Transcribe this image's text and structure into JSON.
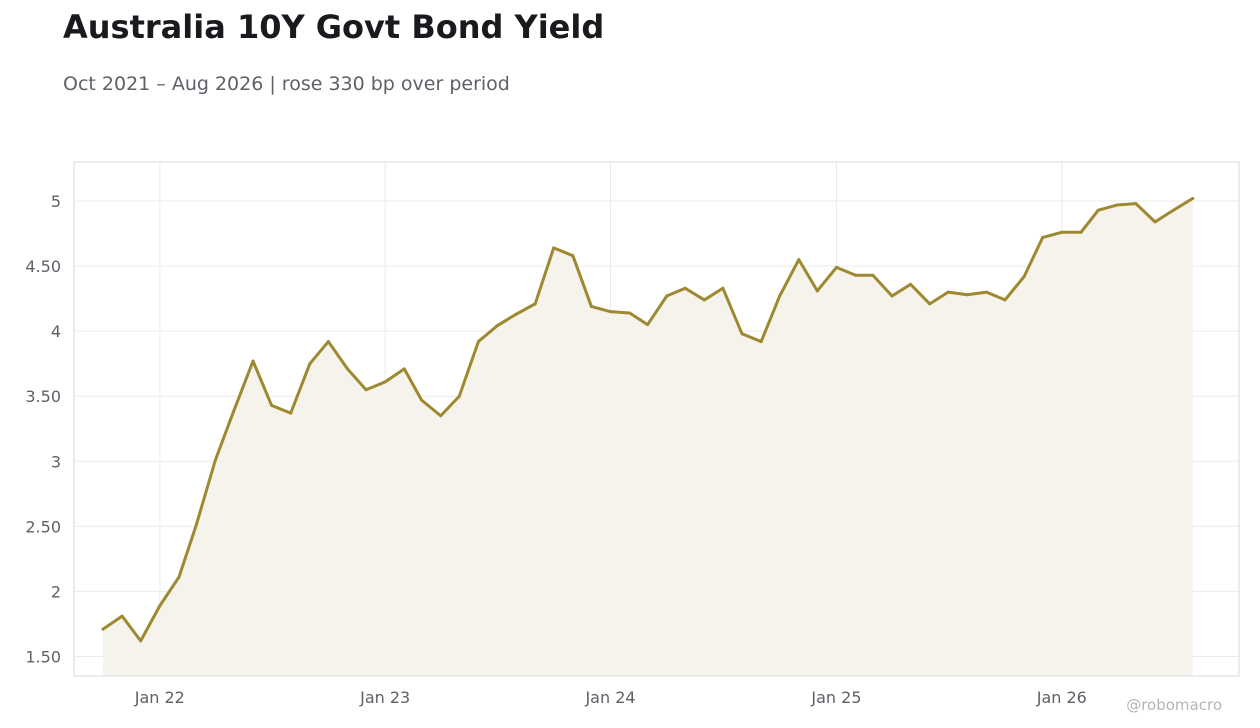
{
  "chart_data": {
    "type": "area",
    "title": "Australia 10Y Govt Bond Yield",
    "subtitle": "Oct 2021 – Aug 2026 | rose 330 bp over period",
    "xlabel": "",
    "ylabel": "",
    "ylim": [
      1.35,
      5.3
    ],
    "xlim": [
      "2021-08-15",
      "2026-10-15"
    ],
    "grid": true,
    "legend": "none",
    "colors": {
      "line": "#9e8830",
      "fill": "#f6f3ec",
      "grid": "#ebebeb",
      "frame": "#d9d9d9"
    },
    "y_ticks": [
      {
        "value": 1.5,
        "label": "1.50"
      },
      {
        "value": 2,
        "label": "2"
      },
      {
        "value": 2.5,
        "label": "2.50"
      },
      {
        "value": 3,
        "label": "3"
      },
      {
        "value": 3.5,
        "label": "3.50"
      },
      {
        "value": 4,
        "label": "4"
      },
      {
        "value": 4.5,
        "label": "4.50"
      },
      {
        "value": 5,
        "label": "5"
      }
    ],
    "x_ticks": [
      {
        "date": "2022-01-01",
        "label": "Jan 22"
      },
      {
        "date": "2023-01-01",
        "label": "Jan 23"
      },
      {
        "date": "2024-01-01",
        "label": "Jan 24"
      },
      {
        "date": "2025-01-01",
        "label": "Jan 25"
      },
      {
        "date": "2026-01-01",
        "label": "Jan 26"
      }
    ],
    "series": [
      {
        "x": [
          "2021-10-01",
          "2021-11-01",
          "2021-12-01",
          "2022-01-01",
          "2022-02-01",
          "2022-03-01",
          "2022-04-01",
          "2022-05-01",
          "2022-06-01",
          "2022-07-01",
          "2022-08-01",
          "2022-09-01",
          "2022-10-01",
          "2022-11-01",
          "2022-12-01",
          "2023-01-01",
          "2023-02-01",
          "2023-03-01",
          "2023-04-01",
          "2023-05-01",
          "2023-06-01",
          "2023-07-01",
          "2023-08-01",
          "2023-09-01",
          "2023-10-01",
          "2023-11-01",
          "2023-12-01",
          "2024-01-01",
          "2024-02-01",
          "2024-03-01",
          "2024-04-01",
          "2024-05-01",
          "2024-06-01",
          "2024-07-01",
          "2024-08-01",
          "2024-09-01",
          "2024-10-01",
          "2024-11-01",
          "2024-12-01",
          "2025-01-01",
          "2025-02-01",
          "2025-03-01",
          "2025-04-01",
          "2025-05-01",
          "2025-06-01",
          "2025-07-01",
          "2025-08-01",
          "2025-09-01",
          "2025-10-01",
          "2025-11-01",
          "2025-12-01",
          "2026-01-01",
          "2026-02-01",
          "2026-03-01",
          "2026-04-01",
          "2026-05-01",
          "2026-06-01",
          "2026-07-01",
          "2026-08-01"
        ],
        "values": [
          1.71,
          1.81,
          1.62,
          1.89,
          2.11,
          2.51,
          3.01,
          3.39,
          3.77,
          3.43,
          3.37,
          3.75,
          3.92,
          3.71,
          3.55,
          3.61,
          3.71,
          3.47,
          3.35,
          3.5,
          3.92,
          4.04,
          4.13,
          4.21,
          4.64,
          4.58,
          4.19,
          4.15,
          4.14,
          4.05,
          4.27,
          4.33,
          4.24,
          4.33,
          3.98,
          3.92,
          4.27,
          4.55,
          4.31,
          4.49,
          4.43,
          4.43,
          4.27,
          4.36,
          4.21,
          4.3,
          4.28,
          4.3,
          4.24,
          4.42,
          4.72,
          4.76,
          4.76,
          4.93,
          4.97,
          4.98,
          4.84,
          4.93,
          5.02
        ]
      }
    ]
  },
  "credit": "@robomacro"
}
